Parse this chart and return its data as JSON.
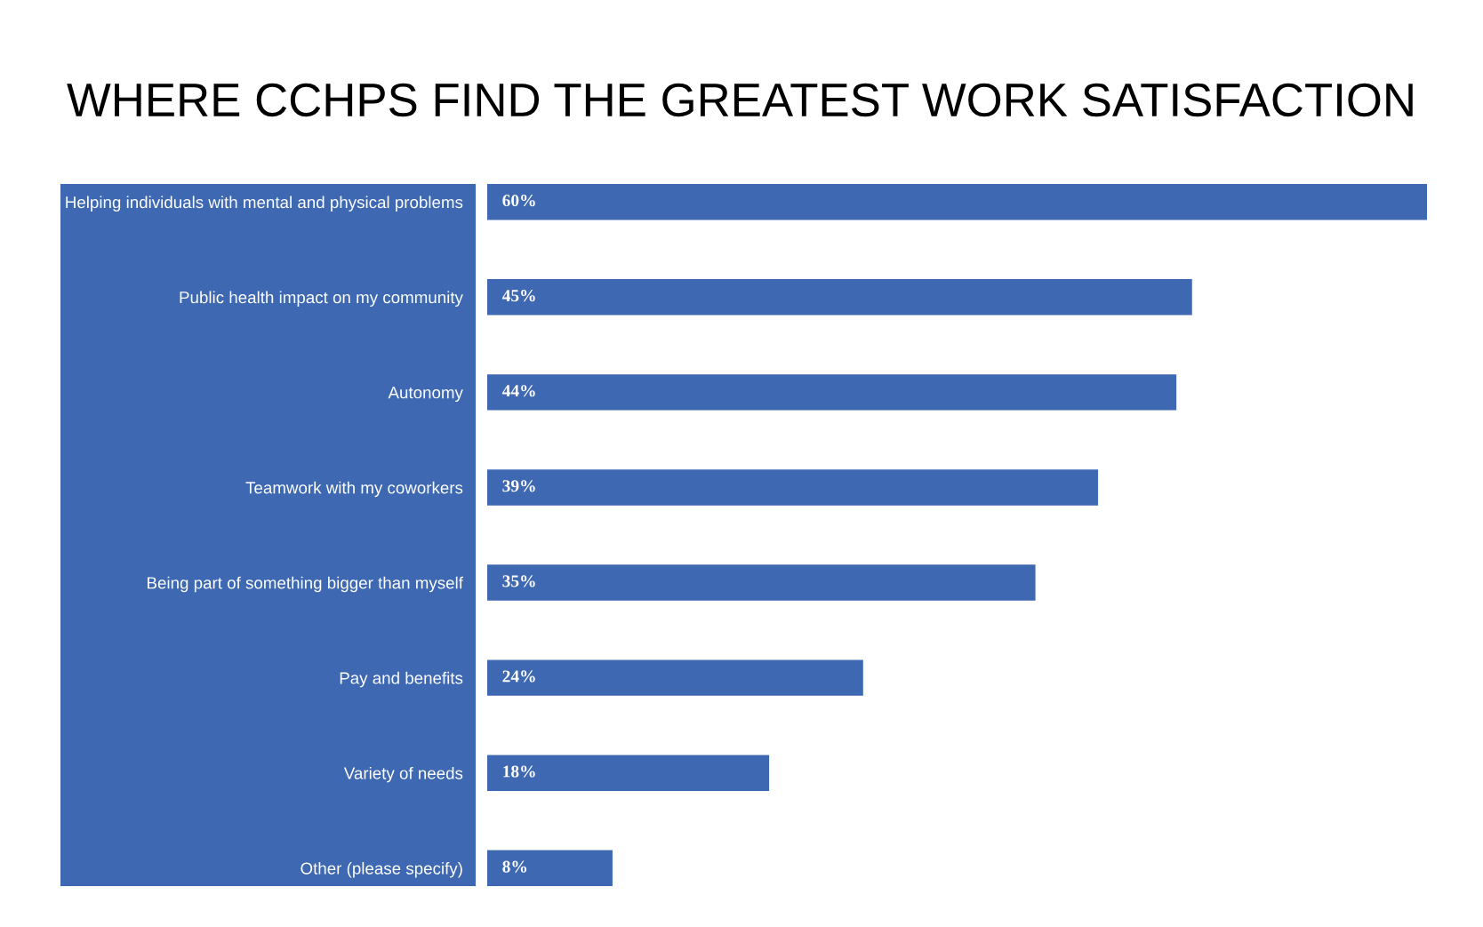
{
  "chart_data": {
    "type": "bar",
    "orientation": "horizontal",
    "title": "WHERE CCHPS FIND THE GREATEST WORK SATISFACTION",
    "categories": [
      "Helping individuals with mental and physical problems",
      "Public health impact on my community",
      "Autonomy",
      "Teamwork with my coworkers",
      "Being part of something bigger than myself",
      "Pay and benefits",
      "Variety of needs",
      "Other (please specify)"
    ],
    "values": [
      60,
      45,
      44,
      39,
      35,
      24,
      18,
      8
    ],
    "value_labels": [
      "60%",
      "45%",
      "44%",
      "39%",
      "35%",
      "24%",
      "18%",
      "8%"
    ],
    "color": "#3e69b2",
    "grid": false,
    "legend": false
  }
}
